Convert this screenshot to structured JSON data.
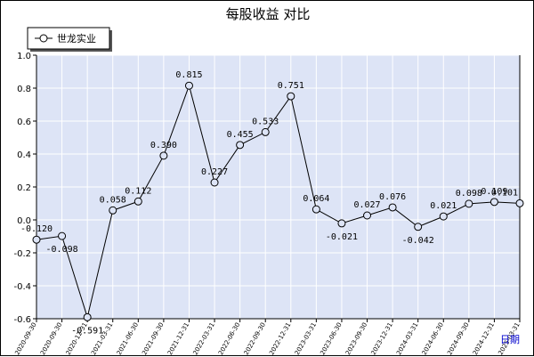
{
  "chart_data": {
    "type": "line",
    "title": "每股收益  对比",
    "xlabel": "日期",
    "ylabel": "",
    "ylim": [
      -0.6,
      1.0
    ],
    "yticks": [
      -0.6,
      -0.4,
      -0.2,
      0.0,
      0.2,
      0.4,
      0.6,
      0.8,
      1.0
    ],
    "grid": true,
    "legend_position": "top-left",
    "categories": [
      "2020-09-30",
      "2020-09-30",
      "2020-12-31",
      "2021-03-31",
      "2021-06-30",
      "2021-09-30",
      "2021-12-31",
      "2022-03-31",
      "2022-06-30",
      "2022-09-30",
      "2022-12-31",
      "2023-03-31",
      "2023-06-30",
      "2023-09-30",
      "2023-12-31",
      "2024-03-31",
      "2024-06-30",
      "2024-09-30",
      "2024-12-31",
      "2025-03-31"
    ],
    "series": [
      {
        "name": "世龙实业",
        "values": [
          -0.12,
          -0.098,
          -0.591,
          0.058,
          0.112,
          0.39,
          0.815,
          0.227,
          0.455,
          0.533,
          0.751,
          0.064,
          -0.021,
          0.027,
          0.076,
          -0.042,
          0.021,
          0.098,
          0.109,
          0.101
        ],
        "labels": [
          "-0.120",
          "-0.098",
          "-0.591",
          "0.058",
          "0.112",
          "0.390",
          "0.815",
          "0.227",
          "0.455",
          "0.533",
          "0.751",
          "0.064",
          "-0.021",
          "0.027",
          "0.076",
          "-0.042",
          "0.021",
          "0.098",
          "0.109",
          "0.101"
        ]
      }
    ],
    "colors": {
      "plot_background": "#dde4f6",
      "gridline": "#ffffff",
      "line": "#000000",
      "marker_fill": "#dde4f6",
      "xlabel": "#0000cc"
    }
  }
}
